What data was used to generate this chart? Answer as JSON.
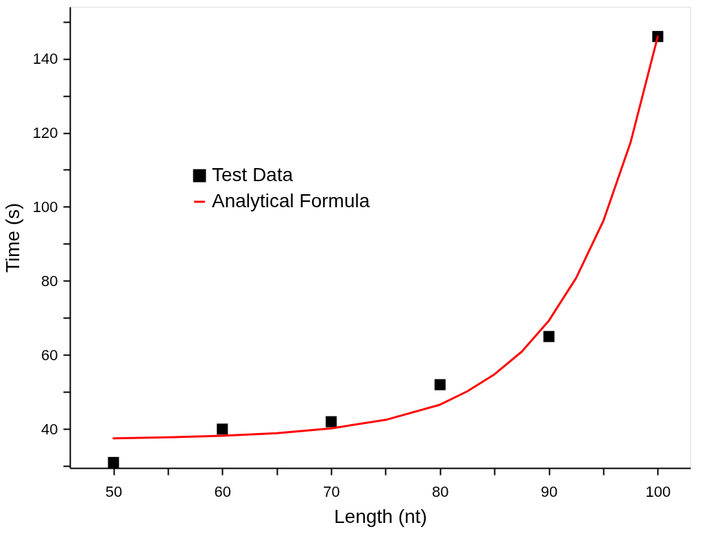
{
  "chart_data": {
    "type": "scatter",
    "xlabel": "Length (nt)",
    "ylabel": "Time (s)",
    "xlim": [
      46,
      103
    ],
    "ylim": [
      29.5,
      154
    ],
    "xticks": [
      50,
      {
        "value": 55,
        "label": null
      },
      60,
      {
        "value": 65,
        "label": null
      },
      70,
      {
        "value": 75,
        "label": null
      },
      80,
      {
        "value": 85,
        "label": null
      },
      90,
      {
        "value": 95,
        "label": null
      },
      100
    ],
    "yticks": [
      {
        "value": 30,
        "label": null
      },
      40,
      {
        "value": 50,
        "label": null
      },
      60,
      {
        "value": 70,
        "label": null
      },
      80,
      {
        "value": 90,
        "label": null
      },
      100,
      {
        "value": 110,
        "label": null
      },
      120,
      {
        "value": 130,
        "label": null
      },
      140,
      {
        "value": 150,
        "label": null
      }
    ],
    "series": [
      {
        "name": "Test Data",
        "marker": "square",
        "color": "#000000",
        "x": [
          50,
          60,
          70,
          80,
          90,
          100
        ],
        "values": [
          31,
          40,
          42,
          52,
          65,
          146
        ]
      },
      {
        "name": "Analytical Formula",
        "type": "line",
        "marker": "none",
        "line_style": "solid",
        "color": "#ff0000",
        "x": [
          50,
          55,
          60,
          65,
          70,
          75,
          80,
          82.5,
          85,
          87.5,
          90,
          92.5,
          95,
          97.5,
          100
        ],
        "values": [
          37.5,
          37.8,
          38.2,
          38.9,
          40.2,
          42.5,
          46.6,
          50.2,
          54.8,
          60.9,
          69.3,
          80.8,
          96.2,
          117.4,
          146
        ]
      }
    ],
    "legend": "top left",
    "grid": false
  }
}
